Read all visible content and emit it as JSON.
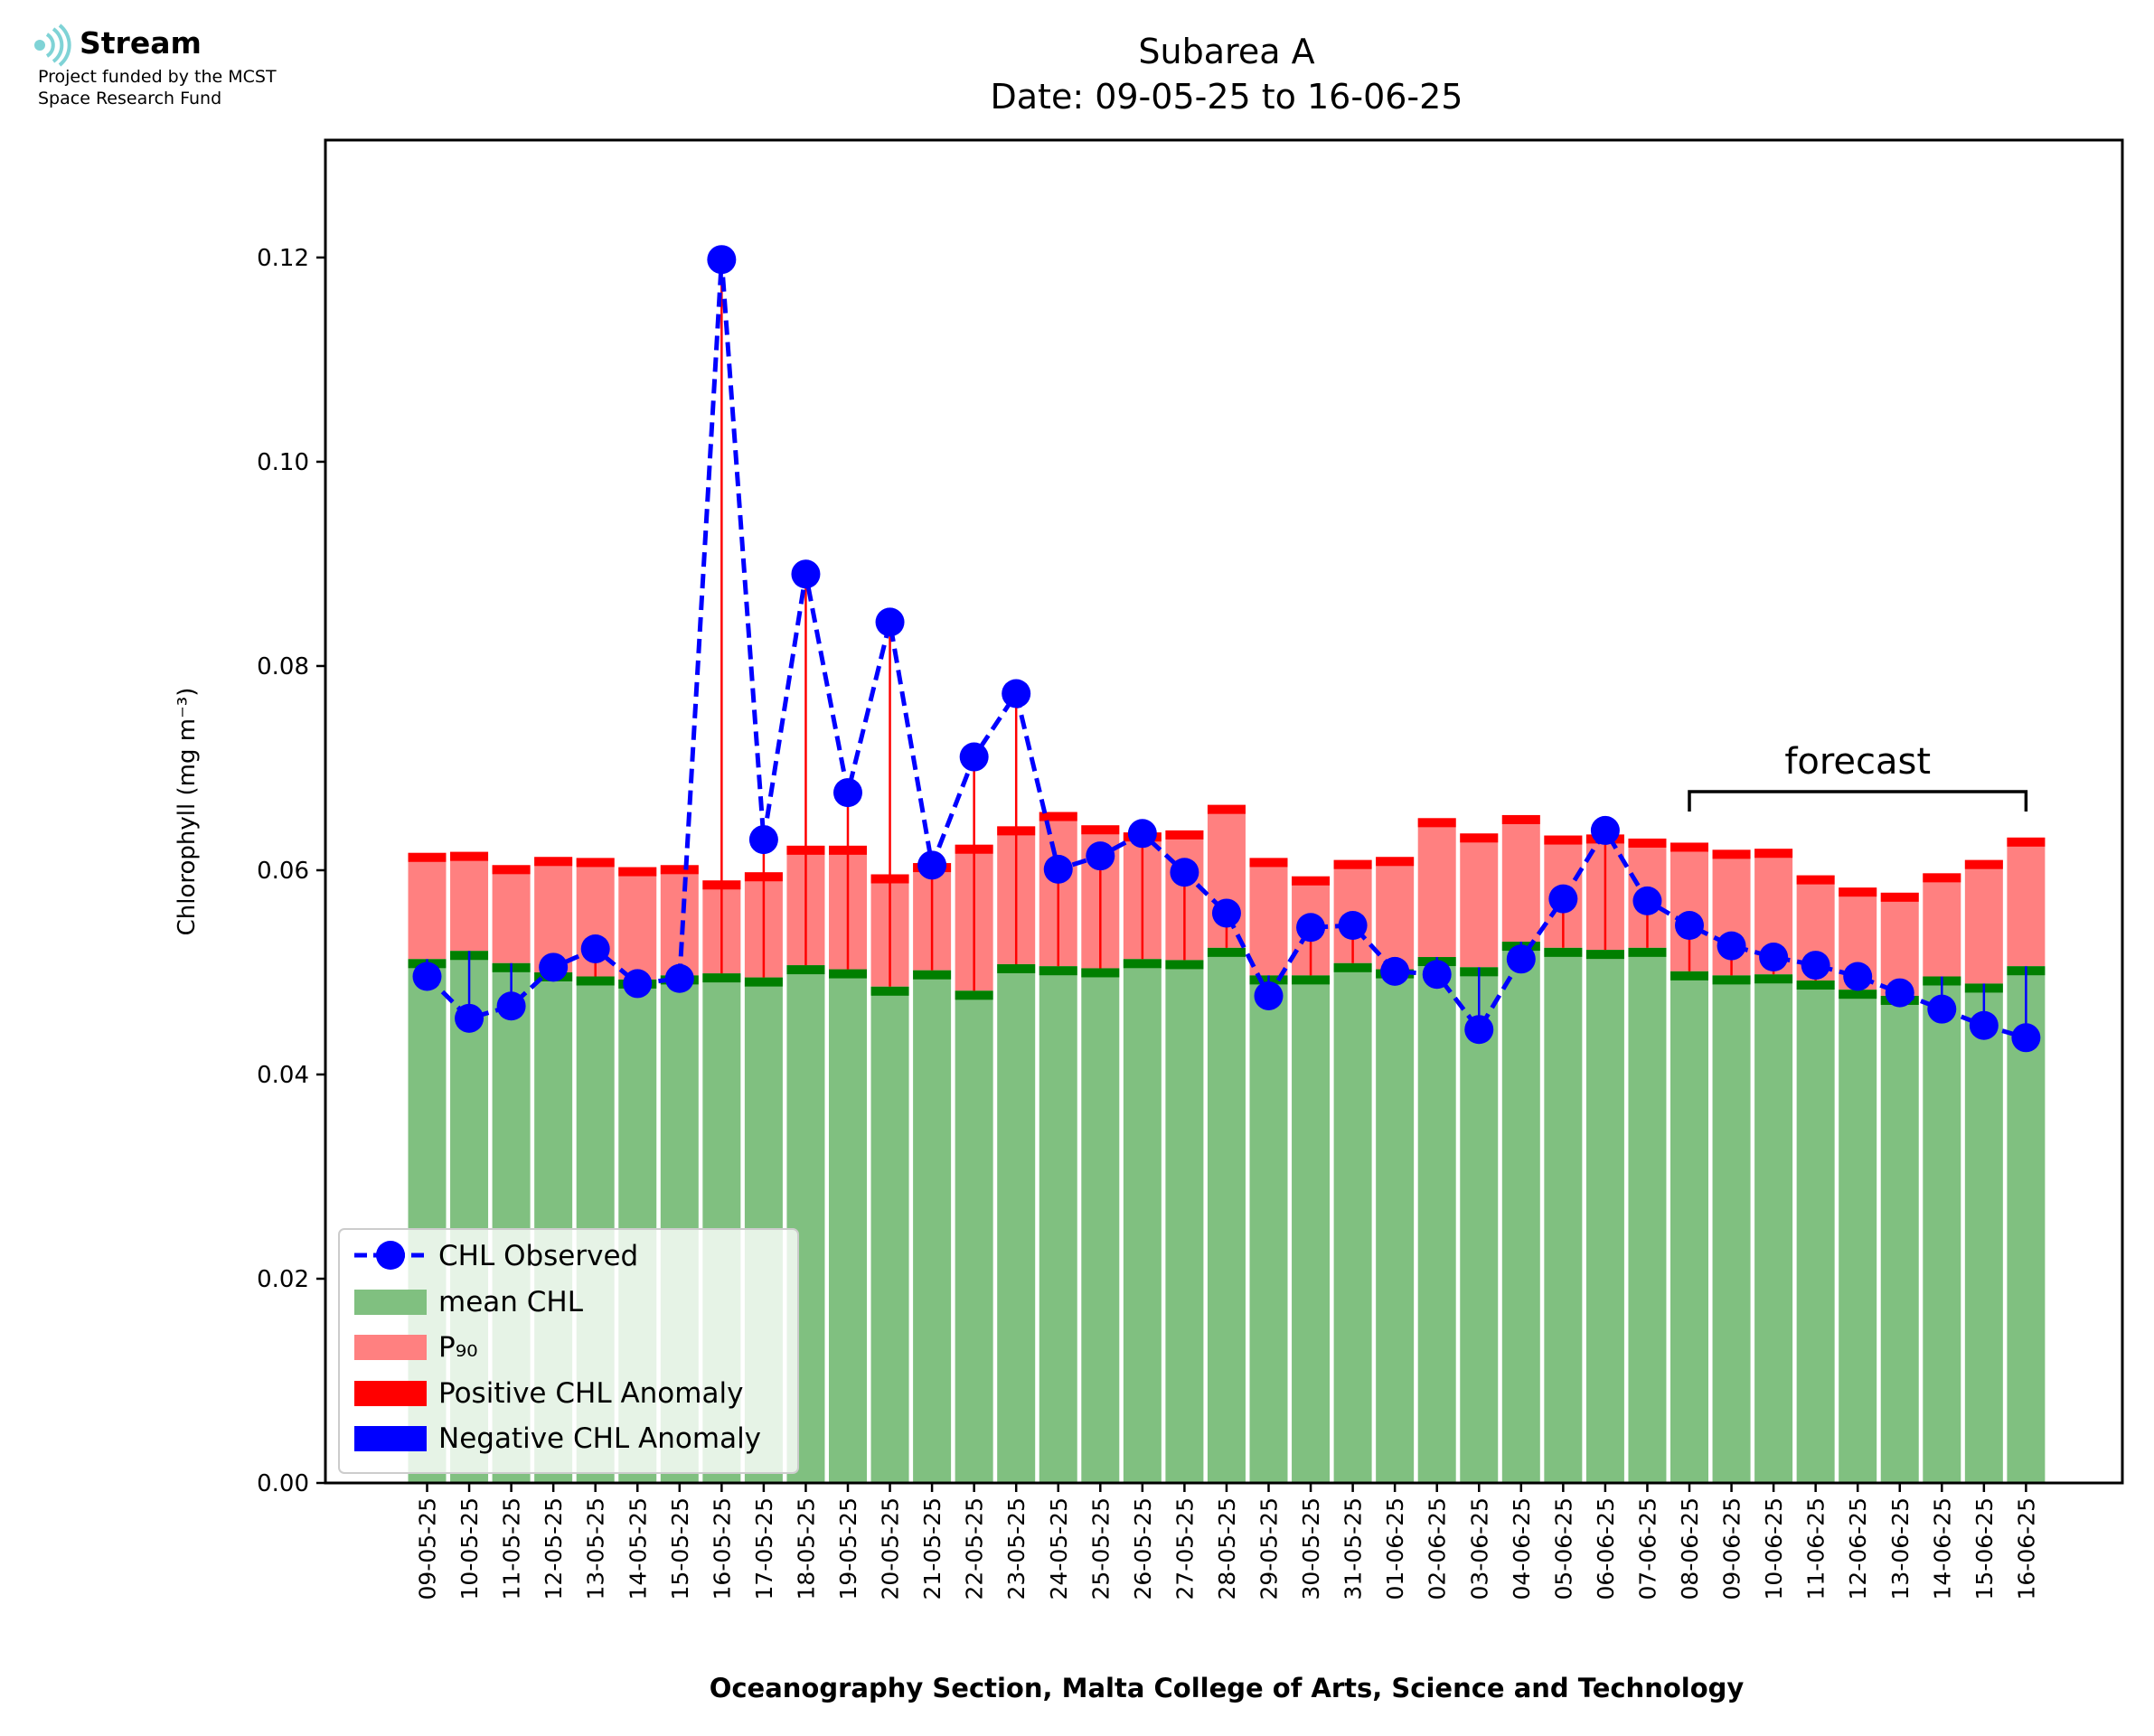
{
  "logo": {
    "icon": "stream-waves-icon",
    "name": "Stream",
    "line1": "Project funded by the MCST",
    "line2": "Space Research Fund"
  },
  "colors": {
    "observed": "#0000ff",
    "mean": "#80c080",
    "mean_cap": "#007f00",
    "p90": "#ff8080",
    "p90_cap": "#ff0000",
    "positive_anomaly": "#ff0000",
    "negative_anomaly": "#0000ff"
  },
  "chart_data": {
    "type": "bar",
    "title_line1": "Subarea A",
    "title_line2": "Date: 09-05-25 to 16-06-25",
    "xlabel": "Oceanography Section, Malta College of Arts, Science and Technology",
    "ylabel": "Chlorophyll (mg m⁻³)",
    "ylim": [
      0,
      0.1315
    ],
    "yticks": [
      "0.00",
      "0.02",
      "0.04",
      "0.06",
      "0.08",
      "0.10",
      "0.12"
    ],
    "legend_placement": "lower-left",
    "legend": [
      "CHL Observed",
      "mean CHL",
      "P₉₀",
      "Positive CHL Anomaly",
      "Negative CHL Anomaly"
    ],
    "annotation": {
      "text": "forecast",
      "from": "08-06-25",
      "to": "16-06-25"
    },
    "categories": [
      "09-05-25",
      "10-05-25",
      "11-05-25",
      "12-05-25",
      "13-05-25",
      "14-05-25",
      "15-05-25",
      "16-05-25",
      "17-05-25",
      "18-05-25",
      "19-05-25",
      "20-05-25",
      "21-05-25",
      "22-05-25",
      "23-05-25",
      "24-05-25",
      "25-05-25",
      "26-05-25",
      "27-05-25",
      "28-05-25",
      "29-05-25",
      "30-05-25",
      "31-05-25",
      "01-06-25",
      "02-06-25",
      "03-06-25",
      "04-06-25",
      "05-06-25",
      "06-06-25",
      "07-06-25",
      "08-06-25",
      "09-06-25",
      "10-06-25",
      "11-06-25",
      "12-06-25",
      "13-06-25",
      "14-06-25",
      "15-06-25",
      "16-06-25"
    ],
    "series": [
      {
        "name": "CHL Observed",
        "values": [
          0.0496,
          0.0455,
          0.0467,
          0.0505,
          0.0523,
          0.0489,
          0.0494,
          0.1198,
          0.063,
          0.089,
          0.0676,
          0.0843,
          0.0605,
          0.0711,
          0.0773,
          0.0601,
          0.0614,
          0.0636,
          0.0598,
          0.0558,
          0.0477,
          0.0544,
          0.0546,
          0.0501,
          0.0498,
          0.0444,
          0.0513,
          0.0572,
          0.0639,
          0.057,
          0.0546,
          0.0526,
          0.0515,
          0.0507,
          0.0496,
          0.048,
          0.0464,
          0.0448,
          0.0436
        ]
      },
      {
        "name": "mean CHL",
        "values": [
          0.0513,
          0.0521,
          0.0509,
          0.05,
          0.0496,
          0.0493,
          0.0497,
          0.0499,
          0.0495,
          0.0507,
          0.0503,
          0.0486,
          0.0502,
          0.0482,
          0.0508,
          0.0506,
          0.0504,
          0.0513,
          0.0512,
          0.0524,
          0.0497,
          0.0497,
          0.0509,
          0.0503,
          0.0515,
          0.0505,
          0.053,
          0.0524,
          0.0522,
          0.0524,
          0.0501,
          0.0497,
          0.0498,
          0.0492,
          0.0483,
          0.0477,
          0.0496,
          0.0489,
          0.0506
        ]
      },
      {
        "name": "P₉₀",
        "values": [
          0.0617,
          0.0618,
          0.0605,
          0.0613,
          0.0612,
          0.0603,
          0.0605,
          0.059,
          0.0598,
          0.0624,
          0.0624,
          0.0596,
          0.0607,
          0.0625,
          0.0643,
          0.0657,
          0.0644,
          0.0637,
          0.0639,
          0.0664,
          0.0612,
          0.0594,
          0.061,
          0.0613,
          0.0651,
          0.0636,
          0.0654,
          0.0634,
          0.0635,
          0.0631,
          0.0627,
          0.062,
          0.0621,
          0.0595,
          0.0583,
          0.0578,
          0.0597,
          0.061,
          0.0632
        ]
      }
    ]
  }
}
